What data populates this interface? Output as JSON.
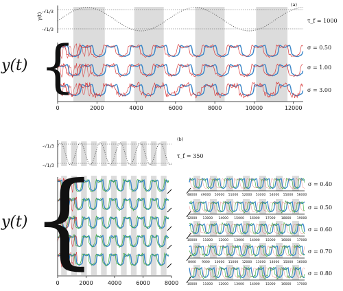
{
  "figure": {
    "panel_a": {
      "tag": "(a)",
      "gamma_ylabel": "γ(t)",
      "gamma_yticks": [
        "-√1/3",
        "-√1/3"
      ],
      "tau_label": "τ_f = 1000",
      "y_label": "y(t)",
      "xticks": [
        "0",
        "2000",
        "4000",
        "6000",
        "8000",
        "10000",
        "12000"
      ],
      "sigma_labels": [
        "σ = 0.50",
        "σ = 1.00",
        "σ = 3.00"
      ]
    },
    "panel_b": {
      "tag": "(b)",
      "gamma_yticks": [
        "-√1/3",
        "-√1/3"
      ],
      "tau_label": "τ_f = 350",
      "y_label": "y(t)",
      "xticks": [
        "0",
        "2000",
        "4000",
        "6000",
        "8000"
      ],
      "sigma_labels": [
        "σ = 0.40",
        "σ = 0.50",
        "σ = 0.60",
        "σ = 0.70",
        "σ = 0.80"
      ],
      "zoom_ticks": [
        [
          "48000",
          "49000",
          "50000",
          "51000",
          "52000",
          "53000",
          "54000",
          "55000",
          "56000"
        ],
        [
          "12000",
          "13000",
          "14000",
          "15000",
          "16000",
          "17000",
          "18000",
          "19000"
        ],
        [
          "10000",
          "11000",
          "12000",
          "13000",
          "14000",
          "15000",
          "16000",
          "17000"
        ],
        [
          "8000",
          "9000",
          "10000",
          "11000",
          "12000",
          "13000",
          "14000",
          "15000",
          "16000"
        ],
        [
          "10000",
          "11000",
          "12000",
          "13000",
          "14000",
          "15000",
          "16000",
          "17000"
        ]
      ]
    }
  },
  "chart_data": [
    {
      "type": "line",
      "panel": "(a) forcing",
      "ylabel": "γ(t)",
      "yticks": [
        "-√1/3",
        "-√1/3"
      ],
      "xlim": [
        0,
        12500
      ],
      "period": 2000,
      "shaded_intervals": [
        [
          800,
          2400
        ],
        [
          3900,
          5400
        ],
        [
          7000,
          8500
        ],
        [
          10100,
          11700
        ]
      ],
      "series": [
        {
          "name": "τ_f = 1000",
          "style": "dotted"
        }
      ]
    },
    {
      "type": "line",
      "panel": "(a) trajectories",
      "ylabel": "y(t)",
      "xlim": [
        0,
        12500
      ],
      "xticks": [
        0,
        2000,
        4000,
        6000,
        8000,
        10000,
        12000
      ],
      "rows": [
        "σ = 0.50",
        "σ = 1.00",
        "σ = 3.00"
      ],
      "colors": {
        "red": "#d62728",
        "blue": "#3a86c8",
        "green": "#3aa83a",
        "shade": "#dcdcdc"
      }
    },
    {
      "type": "line",
      "panel": "(b) forcing",
      "ylabel": "γ(t)",
      "xlim": [
        0,
        8000
      ],
      "period": 700,
      "shaded_intervals": [
        [
          250,
          650
        ],
        [
          950,
          1350
        ],
        [
          1650,
          2050
        ],
        [
          2350,
          2750
        ],
        [
          3050,
          3450
        ],
        [
          3750,
          4150
        ],
        [
          4450,
          4850
        ],
        [
          5150,
          5550
        ],
        [
          5850,
          6250
        ],
        [
          6550,
          6950
        ],
        [
          7250,
          7650
        ]
      ],
      "series": [
        {
          "name": "τ_f = 350",
          "style": "dotted"
        }
      ]
    },
    {
      "type": "line",
      "panel": "(b) trajectories",
      "ylabel": "y(t)",
      "xlim": [
        0,
        8000
      ],
      "xticks": [
        0,
        2000,
        4000,
        6000,
        8000
      ],
      "rows": [
        "σ = 0.40",
        "σ = 0.50",
        "σ = 0.60",
        "σ = 0.70",
        "σ = 0.80"
      ],
      "colors": {
        "red": "#d62728",
        "blue": "#3a86c8",
        "green": "#3aa83a",
        "shade": "#dcdcdc"
      }
    }
  ]
}
